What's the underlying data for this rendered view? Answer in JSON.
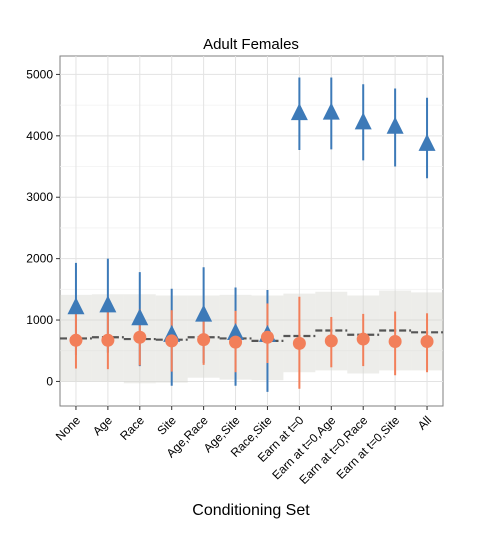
{
  "chart_data": {
    "type": "scatter",
    "title": "Adult Females",
    "xlabel": "Conditioning Set",
    "ylabel": "",
    "ylim": [
      -400,
      5300
    ],
    "yticks": [
      0,
      1000,
      2000,
      3000,
      4000,
      5000
    ],
    "grid": true,
    "legend": "none",
    "categories": [
      "None",
      "Age",
      "Race",
      "Site",
      "Age,Race",
      "Age,Site",
      "Race,Site",
      "Earn at t=0",
      "Earn at t=0,Age",
      "Earn at t=0,Race",
      "Earn at t=0,Site",
      "All"
    ],
    "series": [
      {
        "marker": "triangle",
        "color": "#3d7ab8",
        "values": [
          1200,
          1230,
          1020,
          750,
          1080,
          780,
          750,
          4360,
          4370,
          4210,
          4140,
          3860
        ],
        "lower": [
          430,
          470,
          250,
          -70,
          300,
          -70,
          -170,
          3770,
          3780,
          3600,
          3500,
          3310
        ],
        "upper": [
          1930,
          2000,
          1780,
          1510,
          1860,
          1530,
          1490,
          4950,
          4950,
          4840,
          4770,
          4620
        ]
      },
      {
        "marker": "circle",
        "color": "#f27f5a",
        "values": [
          670,
          670,
          720,
          660,
          680,
          640,
          720,
          620,
          660,
          690,
          650,
          650
        ],
        "lower": [
          210,
          200,
          260,
          160,
          270,
          150,
          300,
          -120,
          230,
          250,
          100,
          150
        ],
        "upper": [
          1130,
          1140,
          1180,
          1160,
          1110,
          1150,
          1270,
          1380,
          1050,
          1100,
          1140,
          1110
        ]
      }
    ],
    "benchmark": {
      "values": [
        700,
        720,
        690,
        680,
        720,
        700,
        660,
        740,
        830,
        760,
        830,
        800
      ],
      "lower": [
        0,
        0,
        -30,
        -20,
        60,
        30,
        20,
        150,
        180,
        130,
        180,
        180
      ],
      "upper": [
        1410,
        1420,
        1420,
        1400,
        1400,
        1410,
        1400,
        1430,
        1460,
        1400,
        1480,
        1450
      ]
    }
  }
}
